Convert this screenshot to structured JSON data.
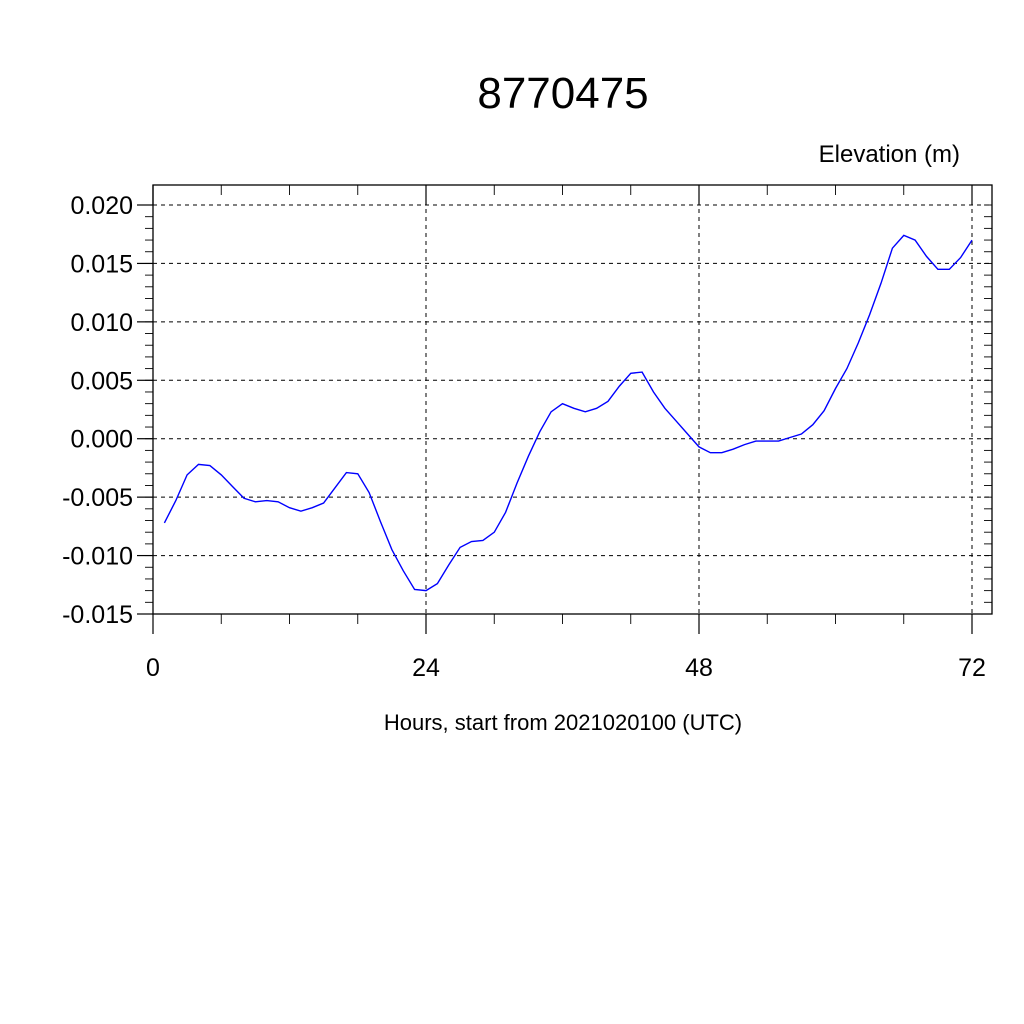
{
  "chart_data": {
    "type": "line",
    "title": "8770475",
    "ylabel": "Elevation (m)",
    "xlabel": "Hours, start from 2021020100 (UTC)",
    "xlim": [
      0,
      72
    ],
    "ylim": [
      -0.015,
      0.02
    ],
    "x_ticks": [
      0,
      24,
      48,
      72
    ],
    "x_tick_labels": [
      "0",
      "24",
      "48",
      "72"
    ],
    "y_ticks": [
      -0.015,
      -0.01,
      -0.005,
      0.0,
      0.005,
      0.01,
      0.015,
      0.02
    ],
    "y_tick_labels": [
      "-0.015",
      "-0.010",
      "-0.005",
      "0.000",
      "0.005",
      "0.010",
      "0.015",
      "0.020"
    ],
    "grid": true,
    "line_color": "#0000ff",
    "series": [
      {
        "x": [
          1,
          2,
          3,
          4,
          5,
          6,
          7,
          8,
          9,
          10,
          11,
          12,
          13,
          14,
          15,
          16,
          17,
          18,
          19,
          20,
          21,
          22,
          23,
          24,
          25,
          26,
          27,
          28,
          29,
          30,
          31,
          32,
          33,
          34,
          35,
          36,
          37,
          38,
          39,
          40,
          41,
          42,
          43,
          44,
          45,
          46,
          47,
          48,
          49,
          50,
          51,
          52,
          53,
          54,
          55,
          56,
          57,
          58,
          59,
          60,
          61,
          62,
          63,
          64,
          65,
          66,
          67,
          68,
          69,
          70,
          71,
          72
        ],
        "y": [
          -0.0072,
          -0.0053,
          -0.0031,
          -0.0022,
          -0.0023,
          -0.0031,
          -0.0041,
          -0.0051,
          -0.0054,
          -0.0053,
          -0.0054,
          -0.0059,
          -0.0062,
          -0.0059,
          -0.0055,
          -0.0042,
          -0.0029,
          -0.003,
          -0.0046,
          -0.0071,
          -0.0095,
          -0.0113,
          -0.0129,
          -0.013,
          -0.0124,
          -0.0108,
          -0.0093,
          -0.0088,
          -0.0087,
          -0.008,
          -0.0063,
          -0.0038,
          -0.0015,
          0.0006,
          0.0023,
          0.003,
          0.0026,
          0.0023,
          0.0026,
          0.0032,
          0.0045,
          0.0056,
          0.0057,
          0.004,
          0.0026,
          0.0015,
          0.0004,
          -0.0007,
          -0.0012,
          -0.0012,
          -0.0009,
          -0.0005,
          -0.0002,
          -0.0002,
          -0.0002,
          0.0001,
          0.0004,
          0.0012,
          0.0024,
          0.0043,
          0.006,
          0.0082,
          0.0106,
          0.0133,
          0.0163,
          0.0174,
          0.017,
          0.0156,
          0.0145,
          0.0145,
          0.0155,
          0.017
        ]
      }
    ]
  }
}
